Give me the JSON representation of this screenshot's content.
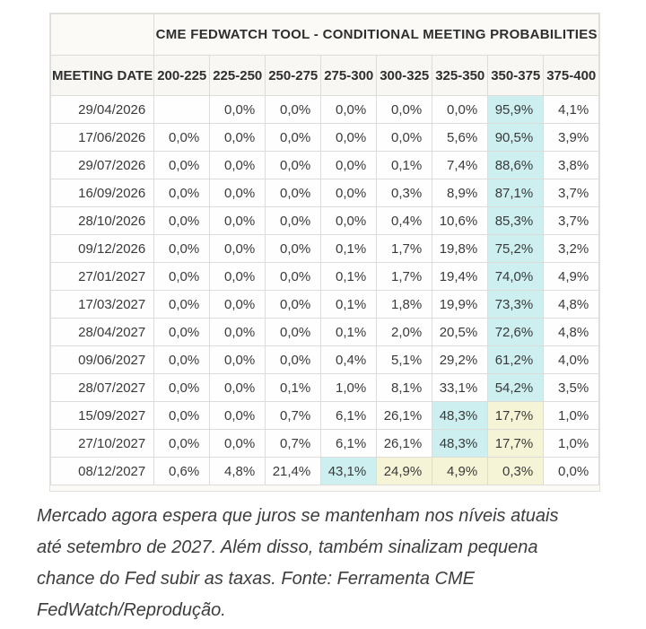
{
  "chart_data": {
    "type": "table",
    "title": "CME FEDWATCH TOOL - CONDITIONAL MEETING PROBABILITIES",
    "row_header": "MEETING DATE",
    "columns": [
      "200-225",
      "225-250",
      "250-275",
      "275-300",
      "300-325",
      "325-350",
      "350-375",
      "375-400"
    ],
    "rows": [
      {
        "date": "29/04/2026",
        "values": [
          "",
          "0,0%",
          "0,0%",
          "0,0%",
          "0,0%",
          "0,0%",
          "95,9%",
          "4,1%"
        ],
        "hl": [
          "",
          "",
          "",
          "",
          "",
          "",
          "c",
          ""
        ]
      },
      {
        "date": "17/06/2026",
        "values": [
          "0,0%",
          "0,0%",
          "0,0%",
          "0,0%",
          "0,0%",
          "5,6%",
          "90,5%",
          "3,9%"
        ],
        "hl": [
          "",
          "",
          "",
          "",
          "",
          "",
          "c",
          ""
        ]
      },
      {
        "date": "29/07/2026",
        "values": [
          "0,0%",
          "0,0%",
          "0,0%",
          "0,0%",
          "0,1%",
          "7,4%",
          "88,6%",
          "3,8%"
        ],
        "hl": [
          "",
          "",
          "",
          "",
          "",
          "",
          "c",
          ""
        ]
      },
      {
        "date": "16/09/2026",
        "values": [
          "0,0%",
          "0,0%",
          "0,0%",
          "0,0%",
          "0,3%",
          "8,9%",
          "87,1%",
          "3,7%"
        ],
        "hl": [
          "",
          "",
          "",
          "",
          "",
          "",
          "c",
          ""
        ]
      },
      {
        "date": "28/10/2026",
        "values": [
          "0,0%",
          "0,0%",
          "0,0%",
          "0,0%",
          "0,4%",
          "10,6%",
          "85,3%",
          "3,7%"
        ],
        "hl": [
          "",
          "",
          "",
          "",
          "",
          "",
          "c",
          ""
        ]
      },
      {
        "date": "09/12/2026",
        "values": [
          "0,0%",
          "0,0%",
          "0,0%",
          "0,1%",
          "1,7%",
          "19,8%",
          "75,2%",
          "3,2%"
        ],
        "hl": [
          "",
          "",
          "",
          "",
          "",
          "",
          "c",
          ""
        ]
      },
      {
        "date": "27/01/2027",
        "values": [
          "0,0%",
          "0,0%",
          "0,0%",
          "0,1%",
          "1,7%",
          "19,4%",
          "74,0%",
          "4,9%"
        ],
        "hl": [
          "",
          "",
          "",
          "",
          "",
          "",
          "c",
          ""
        ]
      },
      {
        "date": "17/03/2027",
        "values": [
          "0,0%",
          "0,0%",
          "0,0%",
          "0,1%",
          "1,8%",
          "19,9%",
          "73,3%",
          "4,8%"
        ],
        "hl": [
          "",
          "",
          "",
          "",
          "",
          "",
          "c",
          ""
        ]
      },
      {
        "date": "28/04/2027",
        "values": [
          "0,0%",
          "0,0%",
          "0,0%",
          "0,1%",
          "2,0%",
          "20,5%",
          "72,6%",
          "4,8%"
        ],
        "hl": [
          "",
          "",
          "",
          "",
          "",
          "",
          "c",
          ""
        ]
      },
      {
        "date": "09/06/2027",
        "values": [
          "0,0%",
          "0,0%",
          "0,0%",
          "0,4%",
          "5,1%",
          "29,2%",
          "61,2%",
          "4,0%"
        ],
        "hl": [
          "",
          "",
          "",
          "",
          "",
          "",
          "c",
          ""
        ]
      },
      {
        "date": "28/07/2027",
        "values": [
          "0,0%",
          "0,0%",
          "0,1%",
          "1,0%",
          "8,1%",
          "33,1%",
          "54,2%",
          "3,5%"
        ],
        "hl": [
          "",
          "",
          "",
          "",
          "",
          "",
          "c",
          ""
        ]
      },
      {
        "date": "15/09/2027",
        "values": [
          "0,0%",
          "0,0%",
          "0,7%",
          "6,1%",
          "26,1%",
          "48,3%",
          "17,7%",
          "1,0%"
        ],
        "hl": [
          "",
          "",
          "",
          "",
          "",
          "c",
          "y",
          ""
        ]
      },
      {
        "date": "27/10/2027",
        "values": [
          "0,0%",
          "0,0%",
          "0,7%",
          "6,1%",
          "26,1%",
          "48,3%",
          "17,7%",
          "1,0%"
        ],
        "hl": [
          "",
          "",
          "",
          "",
          "",
          "c",
          "y",
          ""
        ]
      },
      {
        "date": "08/12/2027",
        "values": [
          "0,6%",
          "4,8%",
          "21,4%",
          "43,1%",
          "24,9%",
          "4,9%",
          "0,3%",
          "0,0%"
        ],
        "hl": [
          "",
          "",
          "",
          "c",
          "y",
          "y",
          "y",
          ""
        ]
      }
    ],
    "highlight_colors": {
      "c": "#cdeff0",
      "y": "#f6f4d7"
    },
    "layout": {
      "grid": true,
      "value_alignment": "right"
    }
  },
  "caption": {
    "lines": [
      "Mercado agora espera que juros se mantenham nos níveis atuais",
      "até setembro de 2027. Além disso, também sinalizam pequena",
      "chance do Fed subir as taxas. Fonte: Ferramenta CME",
      "FedWatch/Reprodução."
    ]
  }
}
